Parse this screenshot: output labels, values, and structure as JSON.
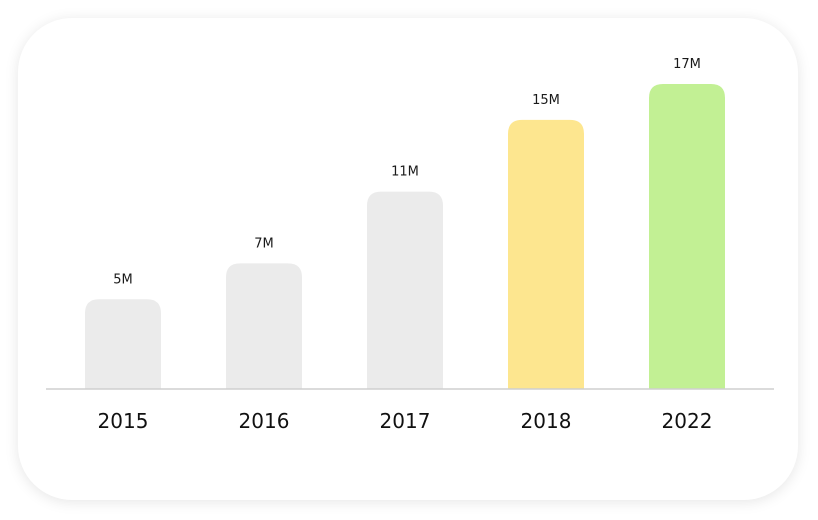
{
  "chart_data": {
    "type": "bar",
    "title": "",
    "xlabel": "",
    "ylabel": "",
    "categories": [
      "2015",
      "2016",
      "2017",
      "2018",
      "2022"
    ],
    "values": [
      5,
      7,
      11,
      15,
      17
    ],
    "value_labels": [
      "5M",
      "7M",
      "11M",
      "15M",
      "17M"
    ],
    "unit": "M",
    "ylim": [
      0,
      18.5
    ],
    "grid": false,
    "legend": "none",
    "bar_colors": [
      "#ebebeb",
      "#ebebeb",
      "#ebebeb",
      "#fde68f",
      "#c2f094"
    ],
    "axis_color": "#cfcfcf"
  }
}
